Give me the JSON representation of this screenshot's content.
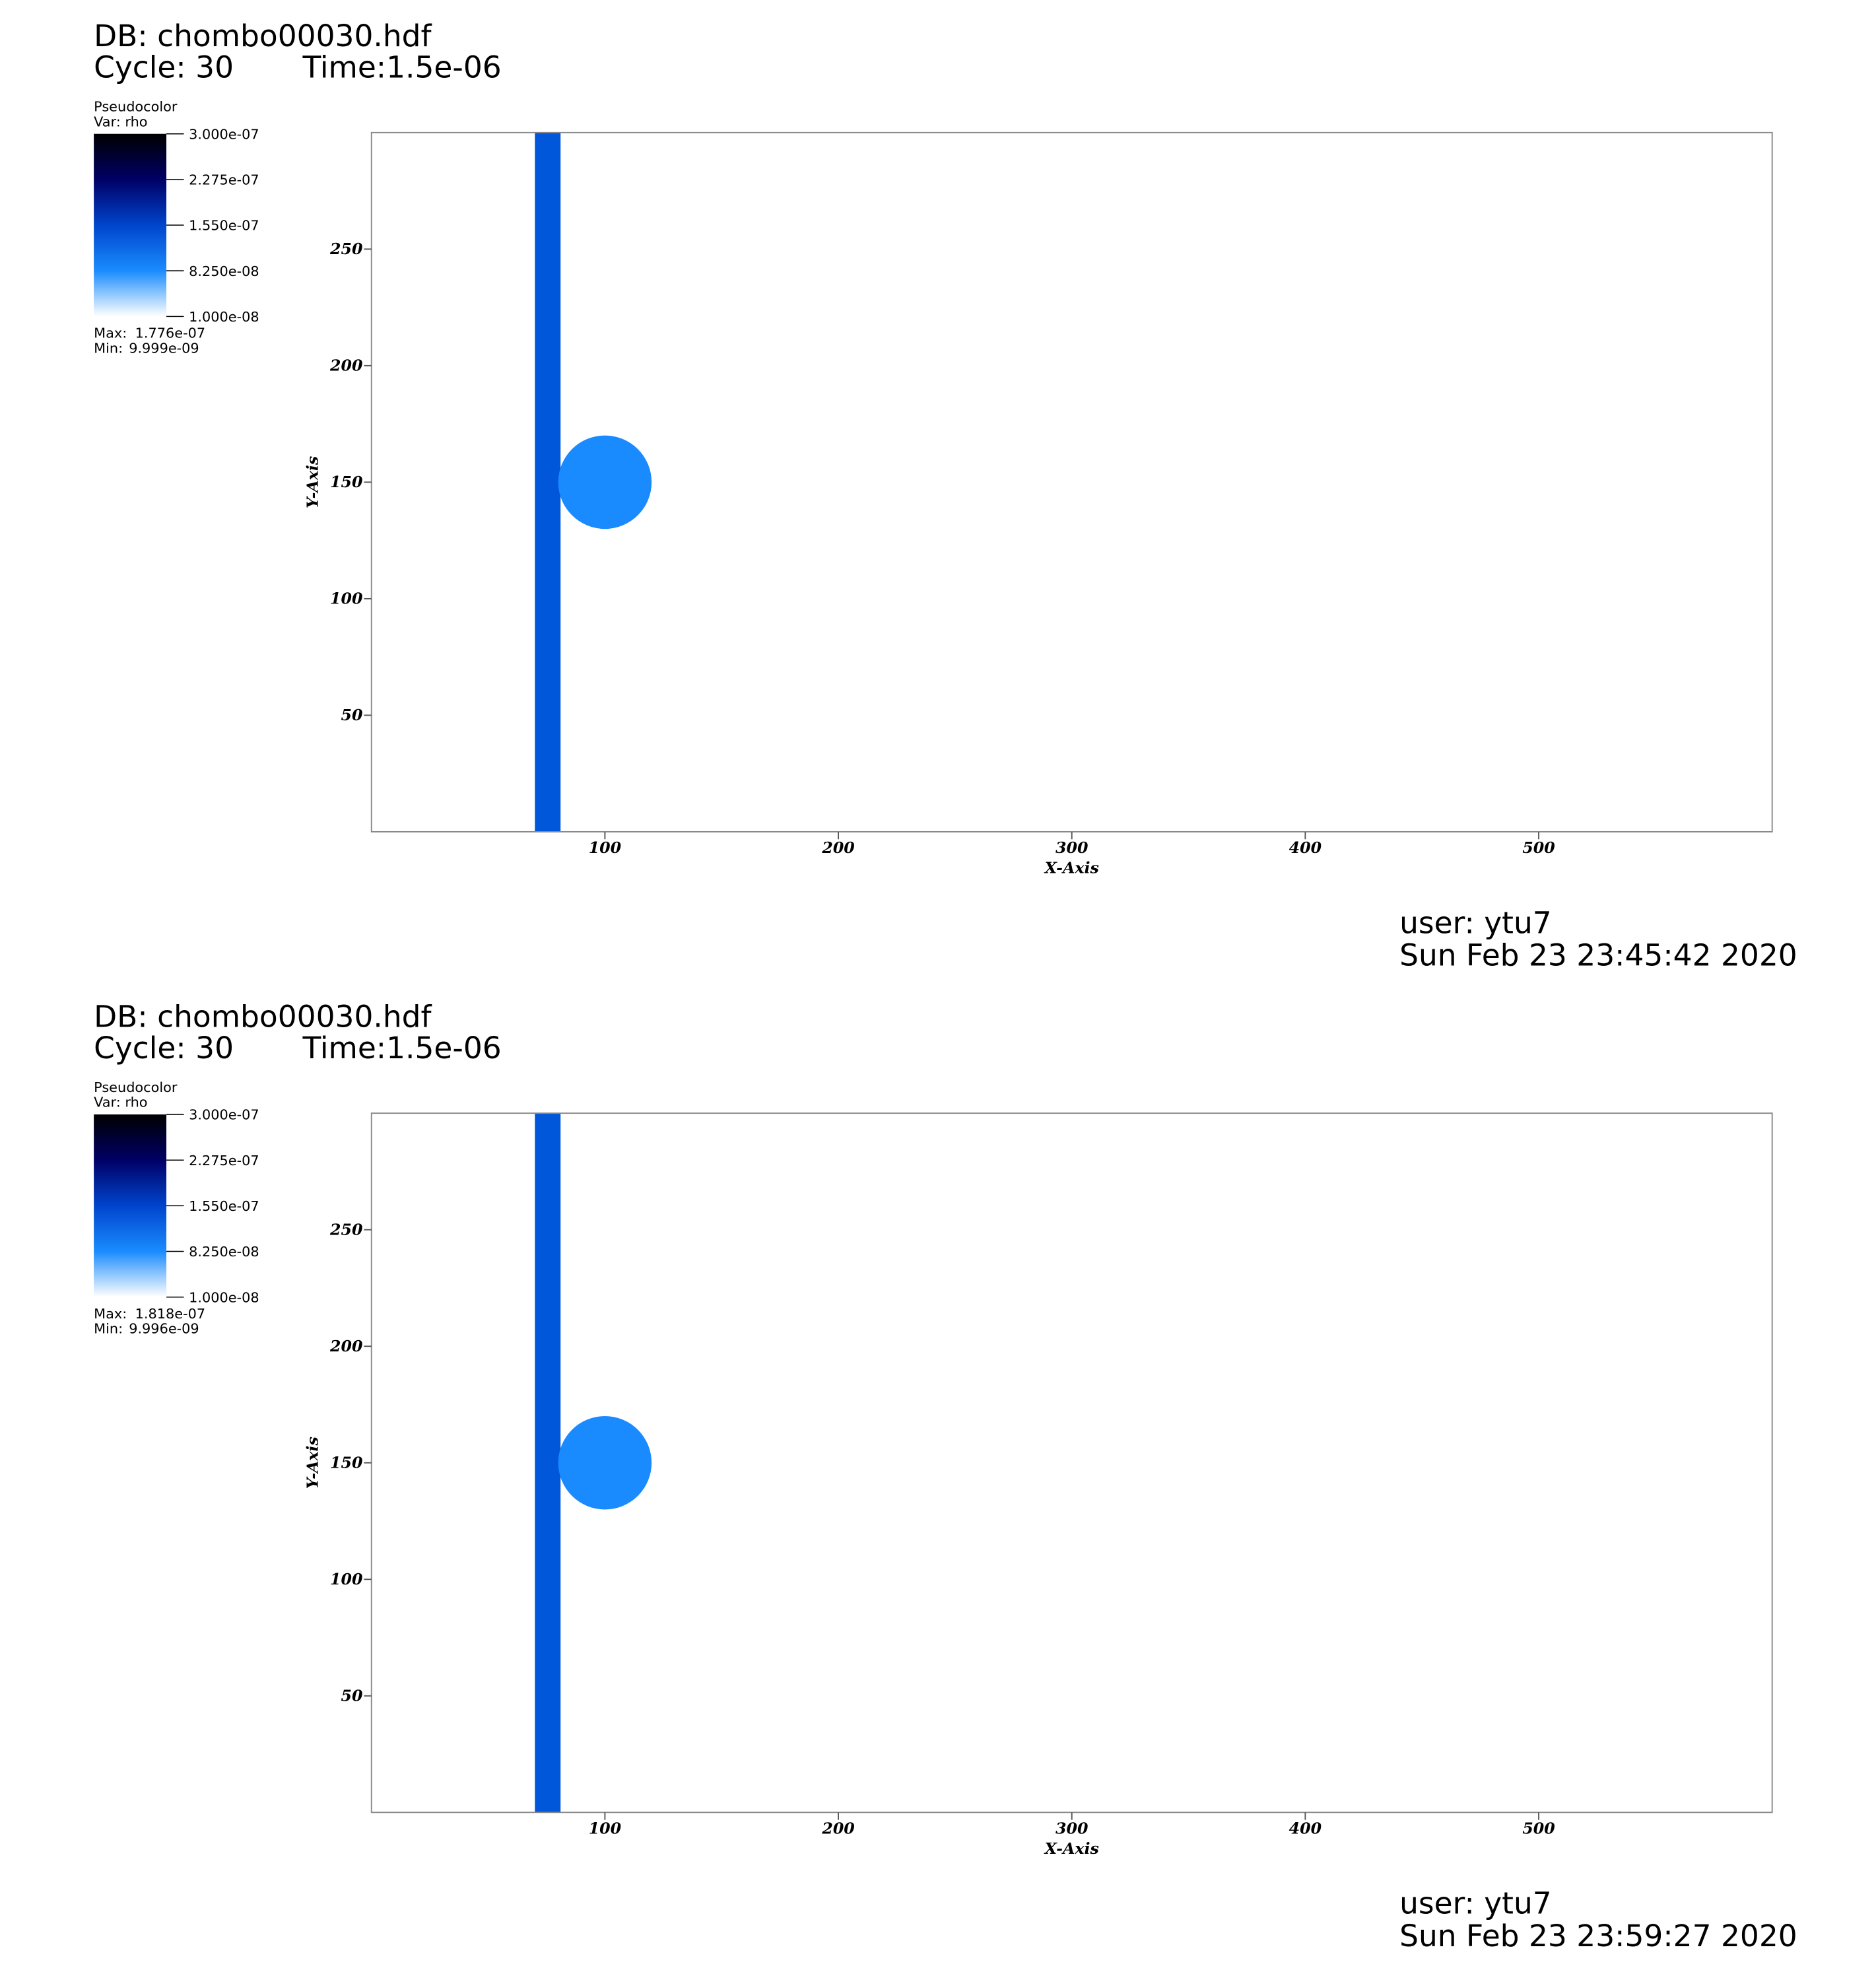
{
  "chart_data": [
    {
      "type": "pseudocolor",
      "db": "DB: chombo00030.hdf",
      "cycle": "Cycle: 30",
      "time": "Time:1.5e-06",
      "legend_title": "Pseudocolor",
      "variable": "Var: rho",
      "clim": [
        1e-08,
        3e-07
      ],
      "cticks": [
        {
          "value": 3e-07,
          "label": "3.000e-07"
        },
        {
          "value": 2.275e-07,
          "label": "2.275e-07"
        },
        {
          "value": 1.55e-07,
          "label": "1.550e-07"
        },
        {
          "value": 8.25e-08,
          "label": "8.250e-08"
        },
        {
          "value": 1e-08,
          "label": "1.000e-08"
        }
      ],
      "colormap": [
        "#ffffff",
        "#1a8cff",
        "#0044cc",
        "#000066",
        "#000000"
      ],
      "max_label": "Max:",
      "max": "1.776e-07",
      "min_label": "Min:",
      "min": "9.999e-09",
      "xlabel": "X-Axis",
      "ylabel": "Y-Axis",
      "xlim": [
        0,
        600
      ],
      "ylim": [
        0,
        300
      ],
      "xticks": [
        100,
        200,
        300,
        400,
        500
      ],
      "yticks": [
        50,
        100,
        150,
        200,
        250
      ],
      "band": {
        "x": [
          70,
          81
        ],
        "color": "#0057d9"
      },
      "circle": {
        "cx": 100,
        "cy": 150,
        "r": 20,
        "color": "#1a8aff"
      },
      "user": "user: ytu7",
      "date": "Sun Feb 23 23:45:42 2020"
    },
    {
      "type": "pseudocolor",
      "db": "DB: chombo00030.hdf",
      "cycle": "Cycle: 30",
      "time": "Time:1.5e-06",
      "legend_title": "Pseudocolor",
      "variable": "Var: rho",
      "clim": [
        1e-08,
        3e-07
      ],
      "cticks": [
        {
          "value": 3e-07,
          "label": "3.000e-07"
        },
        {
          "value": 2.275e-07,
          "label": "2.275e-07"
        },
        {
          "value": 1.55e-07,
          "label": "1.550e-07"
        },
        {
          "value": 8.25e-08,
          "label": "8.250e-08"
        },
        {
          "value": 1e-08,
          "label": "1.000e-08"
        }
      ],
      "colormap": [
        "#ffffff",
        "#1a8cff",
        "#0044cc",
        "#000066",
        "#000000"
      ],
      "max_label": "Max:",
      "max": "1.818e-07",
      "min_label": "Min:",
      "min": "9.996e-09",
      "xlabel": "X-Axis",
      "ylabel": "Y-Axis",
      "xlim": [
        0,
        600
      ],
      "ylim": [
        0,
        300
      ],
      "xticks": [
        100,
        200,
        300,
        400,
        500
      ],
      "yticks": [
        50,
        100,
        150,
        200,
        250
      ],
      "band": {
        "x": [
          70,
          81
        ],
        "color": "#0057d9"
      },
      "circle": {
        "cx": 100,
        "cy": 150,
        "r": 20,
        "color": "#1a8aff"
      },
      "user": "user: ytu7",
      "date": "Sun Feb 23 23:59:27 2020"
    }
  ]
}
